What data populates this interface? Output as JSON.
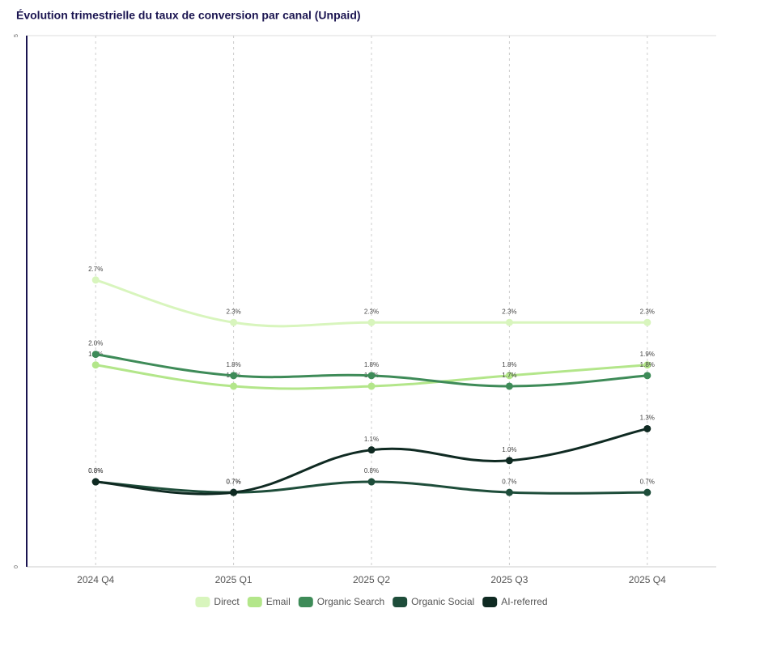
{
  "chart_data": {
    "type": "line",
    "title": "Évolution trimestrielle du taux de conversion par canal (Unpaid)",
    "categories": [
      "2024 Q4",
      "2025 Q1",
      "2025 Q2",
      "2025 Q3",
      "2025 Q4"
    ],
    "ylim": [
      0,
      5
    ],
    "yticks": [
      0,
      5
    ],
    "grid": true,
    "legend": "bottom",
    "series": [
      {
        "name": "Direct",
        "color": "#d8f5bd",
        "values": [
          2.7,
          2.3,
          2.3,
          2.3,
          2.3
        ],
        "value_labels": [
          "2.7%",
          "2.3%",
          "2.3%",
          "2.3%",
          "2.3%"
        ]
      },
      {
        "name": "Email",
        "color": "#b3e68a",
        "values": [
          1.9,
          1.7,
          1.7,
          1.8,
          1.9
        ],
        "value_labels": [
          "1.9%",
          "1.7%",
          "1.7%",
          "1.8%",
          "1.9%"
        ]
      },
      {
        "name": "Organic Search",
        "color": "#3e8b58",
        "values": [
          2.0,
          1.8,
          1.8,
          1.7,
          1.8
        ],
        "value_labels": [
          "2.0%",
          "1.8%",
          "1.8%",
          "1.7%",
          "1.8%"
        ]
      },
      {
        "name": "Organic Social",
        "color": "#1e4d3a",
        "values": [
          0.8,
          0.7,
          0.8,
          0.7,
          0.7
        ],
        "value_labels": [
          "0.8%",
          "0.7%",
          "0.8%",
          "0.7%",
          "0.7%"
        ]
      },
      {
        "name": "AI-referred",
        "color": "#0f2a22",
        "values": [
          0.8,
          0.7,
          1.1,
          1.0,
          1.3
        ],
        "value_labels": [
          "0.8%",
          "0.7%",
          "1.1%",
          "1.0%",
          "1.3%"
        ]
      }
    ]
  }
}
